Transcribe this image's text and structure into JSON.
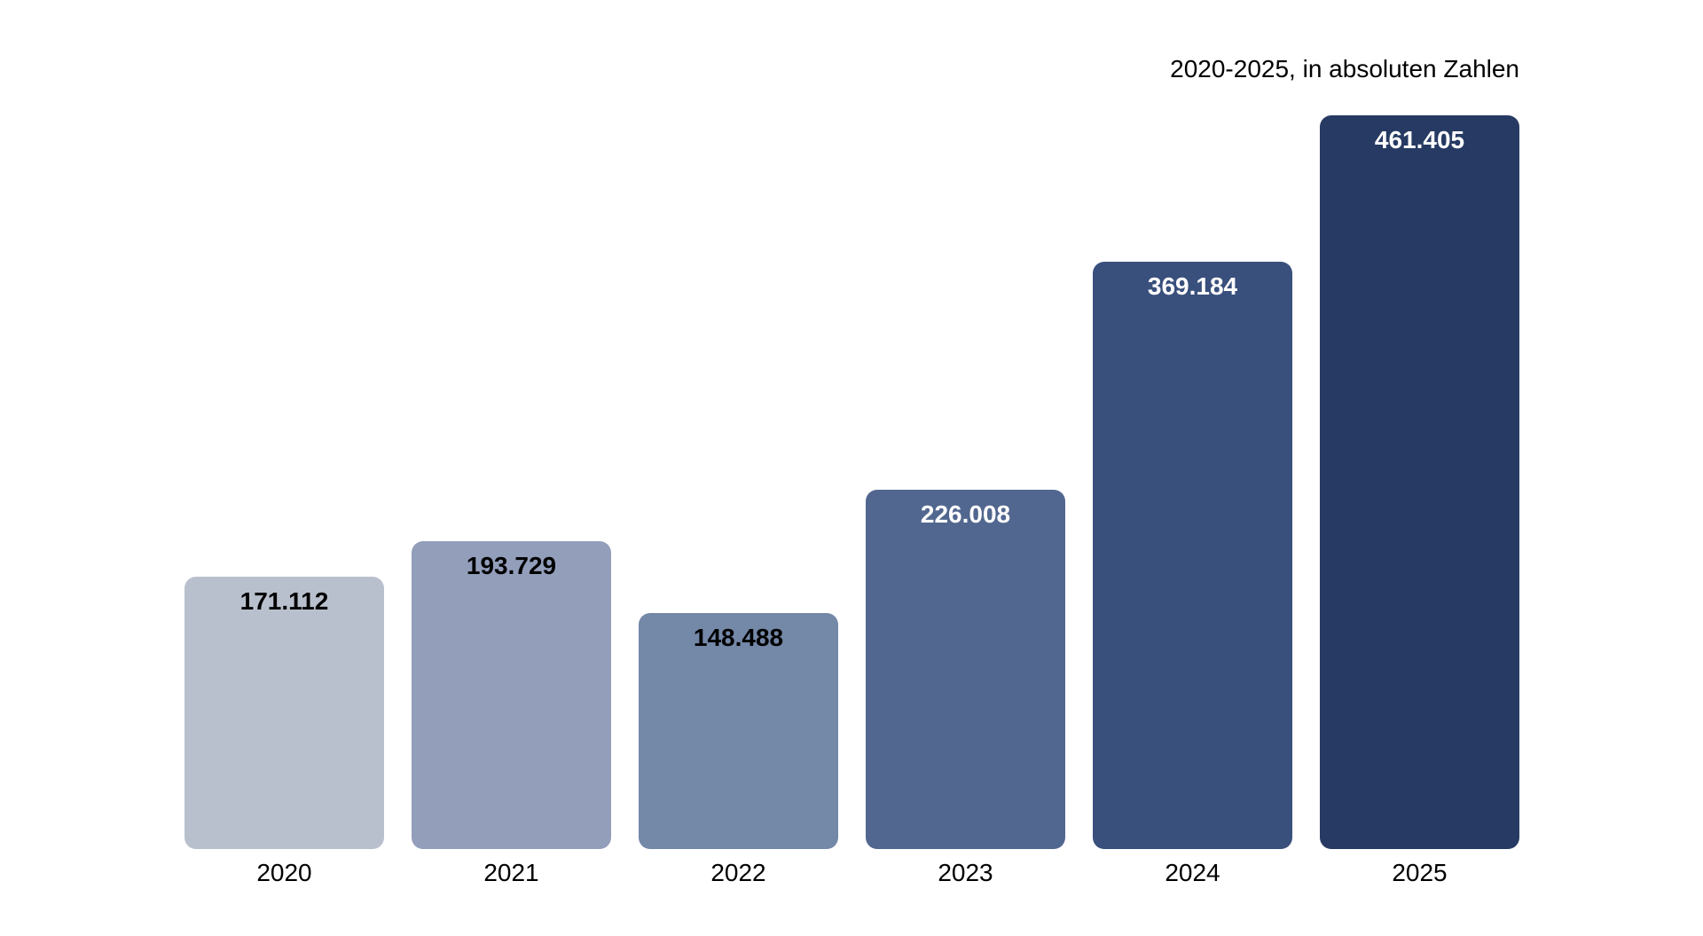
{
  "page": {
    "background_color": "#ffffff"
  },
  "chart_data": {
    "type": "bar",
    "title": "2020-2025, in absoluten Zahlen",
    "title_position": "top-right",
    "categories": [
      "2020",
      "2021",
      "2022",
      "2023",
      "2024",
      "2025"
    ],
    "values": [
      171112,
      193729,
      148488,
      226008,
      369184,
      461405
    ],
    "value_labels": [
      "171.112",
      "193.729",
      "148.488",
      "226.008",
      "369.184",
      "461.405"
    ],
    "value_label_position": "inside-top",
    "xlabel": "",
    "ylabel": "",
    "ylim": [
      0,
      461405
    ],
    "grid": false,
    "legend": false,
    "axis_lines": false,
    "bar_colors": [
      "#b9c0cd",
      "#929eba",
      "#7488a8",
      "#52678f",
      "#394f7c",
      "#263a63"
    ],
    "value_label_colors": [
      "#000000",
      "#000000",
      "#000000",
      "#ffffff",
      "#ffffff",
      "#ffffff"
    ]
  }
}
